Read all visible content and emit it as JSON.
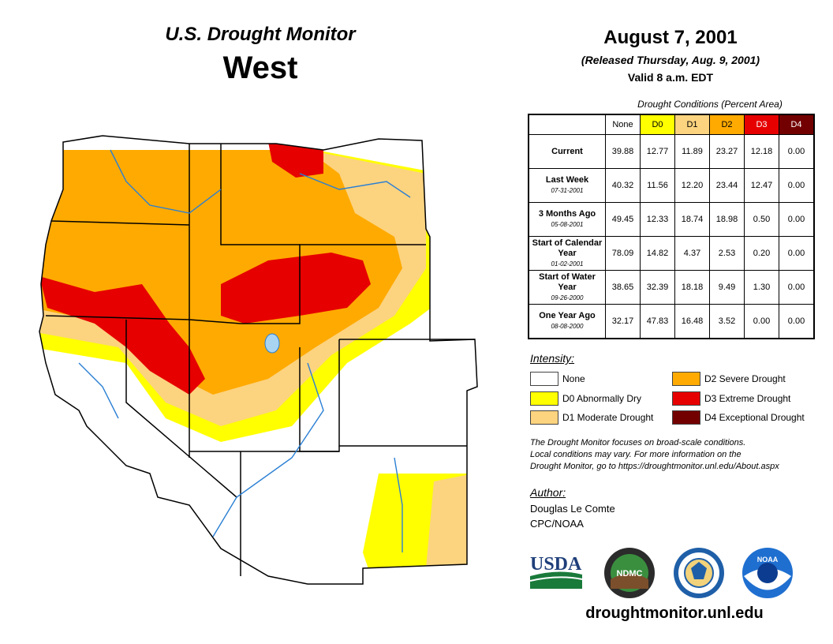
{
  "header": {
    "subtitle": "U.S. Drought Monitor",
    "region": "West",
    "date": "August 7, 2001",
    "released": "(Released Thursday, Aug. 9, 2001)",
    "valid": "Valid 8 a.m. EDT"
  },
  "table": {
    "caption": "Drought Conditions (Percent Area)",
    "columns": [
      "None",
      "D0",
      "D1",
      "D2",
      "D3",
      "D4"
    ],
    "rows": [
      {
        "label": "Current",
        "date": "",
        "values": [
          "39.88",
          "12.77",
          "11.89",
          "23.27",
          "12.18",
          "0.00"
        ]
      },
      {
        "label": "Last Week",
        "date": "07-31-2001",
        "values": [
          "40.32",
          "11.56",
          "12.20",
          "23.44",
          "12.47",
          "0.00"
        ]
      },
      {
        "label": "3 Months Ago",
        "date": "05-08-2001",
        "values": [
          "49.45",
          "12.33",
          "18.74",
          "18.98",
          "0.50",
          "0.00"
        ]
      },
      {
        "label": "Start of Calendar Year",
        "date": "01-02-2001",
        "values": [
          "78.09",
          "14.82",
          "4.37",
          "2.53",
          "0.20",
          "0.00"
        ]
      },
      {
        "label": "Start of Water Year",
        "date": "09-26-2000",
        "values": [
          "38.65",
          "32.39",
          "18.18",
          "9.49",
          "1.30",
          "0.00"
        ]
      },
      {
        "label": "One Year Ago",
        "date": "08-08-2000",
        "values": [
          "32.17",
          "47.83",
          "16.48",
          "3.52",
          "0.00",
          "0.00"
        ]
      }
    ]
  },
  "intensity": {
    "title": "Intensity:",
    "items": [
      {
        "label": "None",
        "color": "#ffffff"
      },
      {
        "label": "D0 Abnormally Dry",
        "color": "#ffff00"
      },
      {
        "label": "D1 Moderate Drought",
        "color": "#fcd37f"
      },
      {
        "label": "D2 Severe Drought",
        "color": "#ffaa00"
      },
      {
        "label": "D3 Extreme Drought",
        "color": "#e60000"
      },
      {
        "label": "D4 Exceptional Drought",
        "color": "#730000"
      }
    ]
  },
  "colors": {
    "none": "#ffffff",
    "d0": "#ffff00",
    "d1": "#fcd37f",
    "d2": "#ffaa00",
    "d3": "#e60000",
    "d4": "#730000",
    "d4_text": "#ffffff",
    "border": "#000000",
    "river": "#2a7fd4"
  },
  "note": {
    "line1": "The Drought Monitor focuses on broad-scale conditions.",
    "line2": "Local conditions may vary. For more information on the",
    "line3": "Drought Monitor, go to https://droughtmonitor.unl.edu/About.aspx"
  },
  "author": {
    "title": "Author:",
    "name": "Douglas Le Comte",
    "org": "CPC/NOAA"
  },
  "logos": {
    "usda": "USDA",
    "ndmc": "NDMC",
    "noaa": "NOAA",
    "icons": [
      "usda-logo-icon",
      "ndmc-logo-icon",
      "commerce-seal-icon",
      "noaa-logo-icon"
    ]
  },
  "url": "droughtmonitor.unl.edu"
}
